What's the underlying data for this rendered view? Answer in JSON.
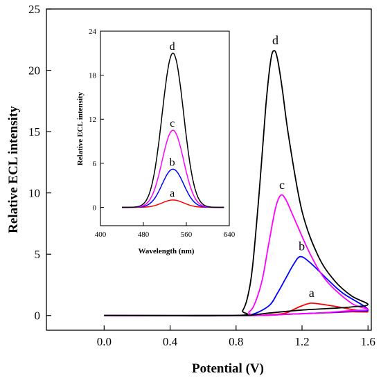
{
  "chart_data": [
    {
      "type": "line",
      "title": "",
      "xlabel": "Potential (V)",
      "ylabel": "Relative ECL intensity",
      "xlim": [
        -0.35,
        1.62
      ],
      "ylim": [
        -1.2,
        25
      ],
      "xticks": [
        0.0,
        0.4,
        0.8,
        1.2,
        1.6
      ],
      "xtick_labels": [
        "0.0",
        "0.4",
        "0.8",
        "1.2",
        "1.6"
      ],
      "yticks": [
        0,
        5,
        10,
        15,
        20,
        25
      ],
      "ytick_labels": [
        "0",
        "5",
        "10",
        "15",
        "20",
        "25"
      ],
      "grid": false,
      "series": [
        {
          "name": "a",
          "color": "#ff0000",
          "x": [
            0.0,
            0.8,
            1.0,
            1.1,
            1.15,
            1.2,
            1.25,
            1.3,
            1.4,
            1.5,
            1.6,
            1.5,
            1.4,
            1.2,
            1.0,
            0.8,
            0.0
          ],
          "y": [
            0.0,
            0.0,
            0.05,
            0.2,
            0.5,
            0.8,
            1.0,
            0.95,
            0.75,
            0.5,
            0.3,
            0.3,
            0.25,
            0.15,
            0.05,
            0.0,
            0.0
          ]
        },
        {
          "name": "b",
          "color": "#0000ff",
          "x": [
            0.0,
            0.8,
            0.9,
            1.0,
            1.05,
            1.1,
            1.15,
            1.19,
            1.25,
            1.35,
            1.45,
            1.6,
            1.5,
            1.3,
            1.1,
            0.9,
            0.0
          ],
          "y": [
            0.0,
            0.0,
            0.1,
            0.8,
            1.8,
            3.0,
            4.2,
            4.8,
            4.3,
            3.0,
            1.8,
            0.5,
            0.35,
            0.2,
            0.1,
            0.0,
            0.0
          ]
        },
        {
          "name": "c",
          "color": "#ff00ff",
          "x": [
            0.0,
            0.8,
            0.88,
            0.92,
            0.96,
            1.0,
            1.04,
            1.07,
            1.1,
            1.15,
            1.25,
            1.35,
            1.5,
            1.6,
            1.5,
            1.3,
            1.1,
            0.9,
            0.0
          ],
          "y": [
            0.0,
            0.0,
            0.3,
            1.2,
            3.0,
            6.0,
            8.8,
            9.8,
            9.5,
            8.0,
            5.0,
            2.8,
            1.0,
            0.5,
            0.4,
            0.2,
            0.1,
            0.0,
            0.0
          ]
        },
        {
          "name": "d",
          "color": "#000000",
          "x": [
            0.0,
            0.8,
            0.84,
            0.87,
            0.9,
            0.94,
            0.98,
            1.01,
            1.03,
            1.05,
            1.08,
            1.12,
            1.2,
            1.3,
            1.4,
            1.5,
            1.6,
            1.5,
            1.4,
            1.2,
            1.0,
            0.9,
            0.8,
            0.0
          ],
          "y": [
            0.0,
            0.0,
            0.4,
            1.5,
            4.0,
            10.0,
            17.0,
            20.8,
            21.6,
            21.0,
            18.5,
            14.5,
            8.5,
            4.8,
            2.8,
            1.6,
            0.9,
            0.7,
            0.6,
            0.45,
            0.2,
            0.05,
            0.0,
            0.0
          ]
        }
      ],
      "annotations": [
        "a",
        "b",
        "c",
        "d"
      ]
    },
    {
      "type": "line",
      "title": "",
      "xlabel": "Wavelength (nm)",
      "ylabel": "Relative ECL intensity",
      "xlim": [
        400,
        640
      ],
      "ylim": [
        -2.5,
        24
      ],
      "xticks": [
        400,
        480,
        560,
        640
      ],
      "xtick_labels": [
        "400",
        "480",
        "560",
        "640"
      ],
      "yticks": [
        0,
        6,
        12,
        18,
        24
      ],
      "ytick_labels": [
        "0",
        "6",
        "12",
        "18",
        "24"
      ],
      "grid": false,
      "peak_wavelength": 535,
      "peak_width": 20,
      "wavelength_range": [
        440,
        630
      ],
      "series": [
        {
          "name": "a",
          "color": "#ff0000",
          "peak": 1.0
        },
        {
          "name": "b",
          "color": "#0000ff",
          "peak": 5.2
        },
        {
          "name": "c",
          "color": "#ff00ff",
          "peak": 10.5
        },
        {
          "name": "d",
          "color": "#000000",
          "peak": 21.0
        }
      ],
      "annotations": [
        "a",
        "b",
        "c",
        "d"
      ]
    }
  ]
}
